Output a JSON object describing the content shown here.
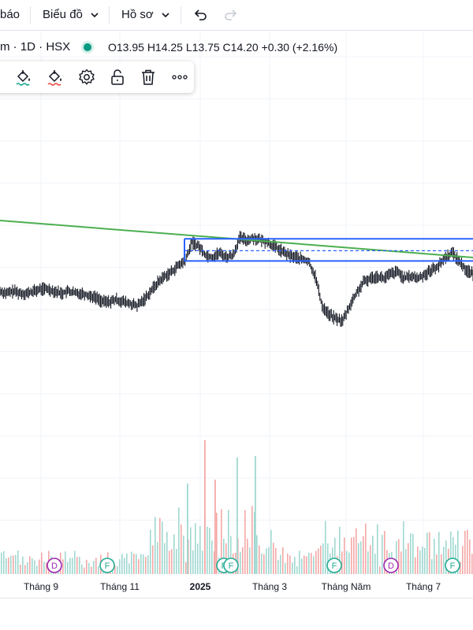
{
  "topbar": {
    "alerts_label": "báo",
    "chart_menu_label": "Biểu đồ",
    "profile_menu_label": "Hồ sơ"
  },
  "legend": {
    "symbol": "m · 1D · HSX",
    "ohlc": "O13.95  H14.25  L13.75  C14.20  +0.30 (+2.16%)"
  },
  "toolbar": {
    "icons": [
      "fill-color-green-icon",
      "fill-color-red-icon",
      "settings-icon",
      "unlock-icon",
      "trash-icon",
      "more-icon"
    ]
  },
  "chart_data": {
    "type": "candlestick",
    "xaxis_labels": [
      "Tháng 9",
      "Tháng 11",
      "2025",
      "Tháng 3",
      "Tháng Năm",
      "Tháng 7"
    ],
    "price_series": [
      13.15,
      13.1,
      13.15,
      13.1,
      13.1,
      13.15,
      13.2,
      13.2,
      13.15,
      13.1,
      13.15,
      13.1,
      13.1,
      13.05,
      13.0,
      12.9,
      12.9,
      12.95,
      12.9,
      12.85,
      12.8,
      12.95,
      13.15,
      13.35,
      13.5,
      13.6,
      13.75,
      13.85,
      14.3,
      14.2,
      14.0,
      13.95,
      14.05,
      13.95,
      14.0,
      14.4,
      14.35,
      14.4,
      14.35,
      14.3,
      14.2,
      14.1,
      14.0,
      13.95,
      13.9,
      13.85,
      13.5,
      12.8,
      12.6,
      12.5,
      12.45,
      12.8,
      13.1,
      13.35,
      13.45,
      13.5,
      13.45,
      13.55,
      13.6,
      13.45,
      13.5,
      13.45,
      13.55,
      13.65,
      13.75,
      13.95,
      14.05,
      13.85,
      13.65,
      13.55
    ],
    "trendline": {
      "from": [
        "Tháng 7 2024",
        14.6
      ],
      "to": [
        "Tháng 8 2025",
        14.04
      ]
    },
    "channel": {
      "upper": 14.38,
      "lower": 13.86,
      "mid": 14.1
    },
    "volume_event_markers": [
      {
        "label": "D",
        "color": "#9c27b0"
      },
      {
        "label": "F",
        "color": "#22ab94"
      },
      {
        "label": "F",
        "color": "#22ab94"
      },
      {
        "label": "F",
        "color": "#22ab94"
      },
      {
        "label": "F",
        "color": "#22ab94"
      },
      {
        "label": "D",
        "color": "#9c27b0"
      },
      {
        "label": "F",
        "color": "#22ab94"
      }
    ],
    "colors": {
      "up": "#26a69a",
      "down": "#ef5350",
      "trendline": "#4caf50",
      "channel": "#2962ff"
    },
    "grid": true
  }
}
